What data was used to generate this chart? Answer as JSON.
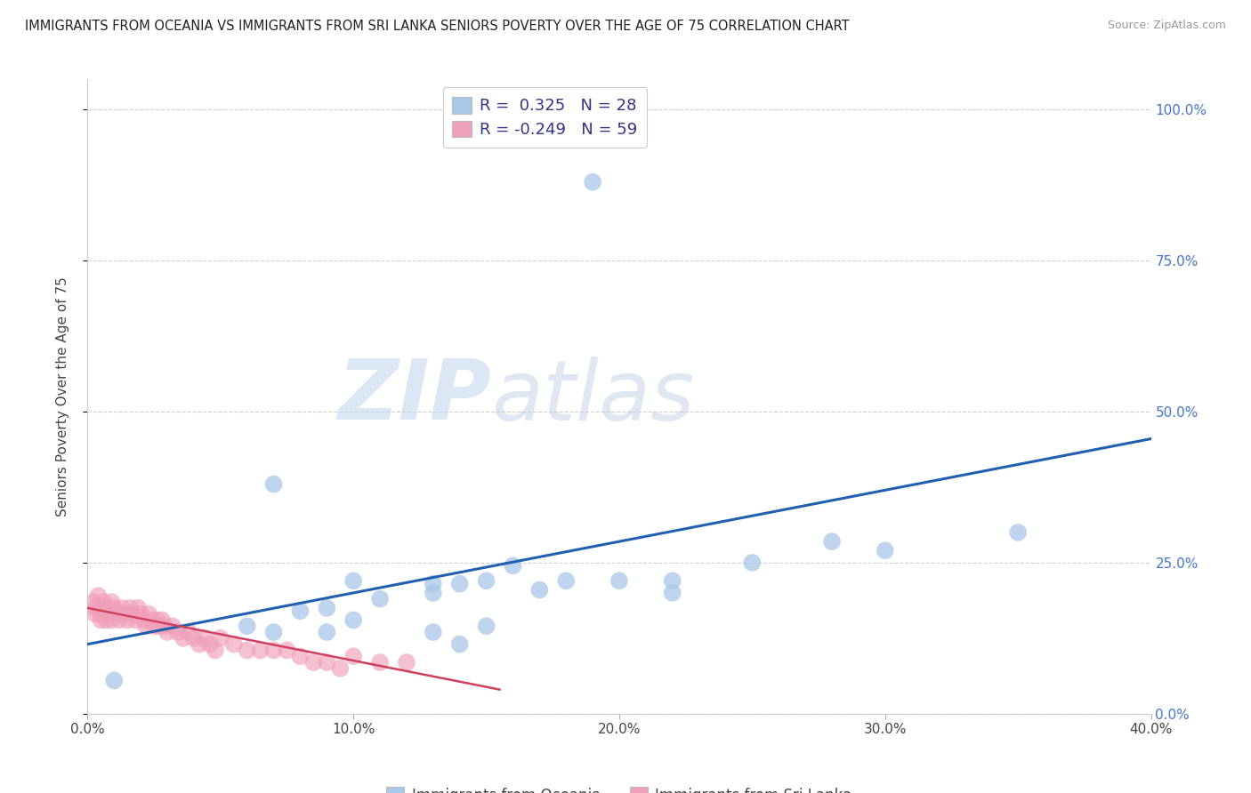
{
  "title": "IMMIGRANTS FROM OCEANIA VS IMMIGRANTS FROM SRI LANKA SENIORS POVERTY OVER THE AGE OF 75 CORRELATION CHART",
  "source": "Source: ZipAtlas.com",
  "ylabel": "Seniors Poverty Over the Age of 75",
  "xlim": [
    0.0,
    0.4
  ],
  "ylim": [
    0.0,
    1.05
  ],
  "yticks": [
    0.0,
    0.25,
    0.5,
    0.75,
    1.0
  ],
  "ytick_labels": [
    "0.0%",
    "25.0%",
    "50.0%",
    "75.0%",
    "100.0%"
  ],
  "xticks": [
    0.0,
    0.1,
    0.2,
    0.3,
    0.4
  ],
  "xtick_labels": [
    "0.0%",
    "10.0%",
    "20.0%",
    "30.0%",
    "40.0%"
  ],
  "background_color": "#ffffff",
  "grid_color": "#d0d0d0",
  "watermark_zip": "ZIP",
  "watermark_atlas": "atlas",
  "legend_r1": "R =  0.325   N = 28",
  "legend_r2": "R = -0.249   N = 59",
  "color_oceania": "#a8c8e8",
  "color_sri_lanka": "#f0a0b8",
  "line_color_oceania": "#2060b0",
  "line_color_sri_lanka": "#d04060",
  "oceania_scatter_x": [
    0.19,
    0.07,
    0.1,
    0.13,
    0.14,
    0.15,
    0.08,
    0.11,
    0.17,
    0.18,
    0.13,
    0.06,
    0.09,
    0.2,
    0.22,
    0.25,
    0.13,
    0.14,
    0.15,
    0.09,
    0.1,
    0.35,
    0.22,
    0.16,
    0.28,
    0.3,
    0.07,
    0.01
  ],
  "oceania_scatter_y": [
    0.88,
    0.38,
    0.22,
    0.215,
    0.215,
    0.22,
    0.17,
    0.19,
    0.205,
    0.22,
    0.135,
    0.145,
    0.135,
    0.22,
    0.22,
    0.25,
    0.2,
    0.115,
    0.145,
    0.175,
    0.155,
    0.3,
    0.2,
    0.245,
    0.285,
    0.27,
    0.135,
    0.055
  ],
  "sri_lanka_scatter_x": [
    0.002,
    0.003,
    0.004,
    0.005,
    0.006,
    0.007,
    0.008,
    0.009,
    0.01,
    0.011,
    0.012,
    0.013,
    0.014,
    0.015,
    0.016,
    0.017,
    0.018,
    0.019,
    0.02,
    0.021,
    0.022,
    0.023,
    0.024,
    0.025,
    0.026,
    0.027,
    0.028,
    0.029,
    0.03,
    0.032,
    0.034,
    0.036,
    0.038,
    0.04,
    0.042,
    0.044,
    0.046,
    0.048,
    0.05,
    0.055,
    0.06,
    0.065,
    0.07,
    0.075,
    0.08,
    0.085,
    0.09,
    0.095,
    0.1,
    0.11,
    0.12,
    0.003,
    0.004,
    0.005,
    0.006,
    0.007,
    0.008,
    0.009,
    0.01
  ],
  "sri_lanka_scatter_y": [
    0.185,
    0.175,
    0.195,
    0.165,
    0.185,
    0.175,
    0.165,
    0.185,
    0.175,
    0.165,
    0.155,
    0.175,
    0.165,
    0.155,
    0.175,
    0.165,
    0.155,
    0.175,
    0.165,
    0.155,
    0.145,
    0.165,
    0.155,
    0.145,
    0.155,
    0.145,
    0.155,
    0.145,
    0.135,
    0.145,
    0.135,
    0.125,
    0.135,
    0.125,
    0.115,
    0.125,
    0.115,
    0.105,
    0.125,
    0.115,
    0.105,
    0.105,
    0.105,
    0.105,
    0.095,
    0.085,
    0.085,
    0.075,
    0.095,
    0.085,
    0.085,
    0.165,
    0.175,
    0.155,
    0.165,
    0.155,
    0.165,
    0.155,
    0.165
  ],
  "oceania_line_x": [
    0.0,
    0.4
  ],
  "oceania_line_y": [
    0.115,
    0.455
  ],
  "sri_lanka_line_x": [
    0.0,
    0.155
  ],
  "sri_lanka_line_y": [
    0.175,
    0.04
  ],
  "title_fontsize": 10.5,
  "axis_label_fontsize": 11,
  "tick_fontsize": 11,
  "legend_fontsize": 13,
  "source_fontsize": 9
}
